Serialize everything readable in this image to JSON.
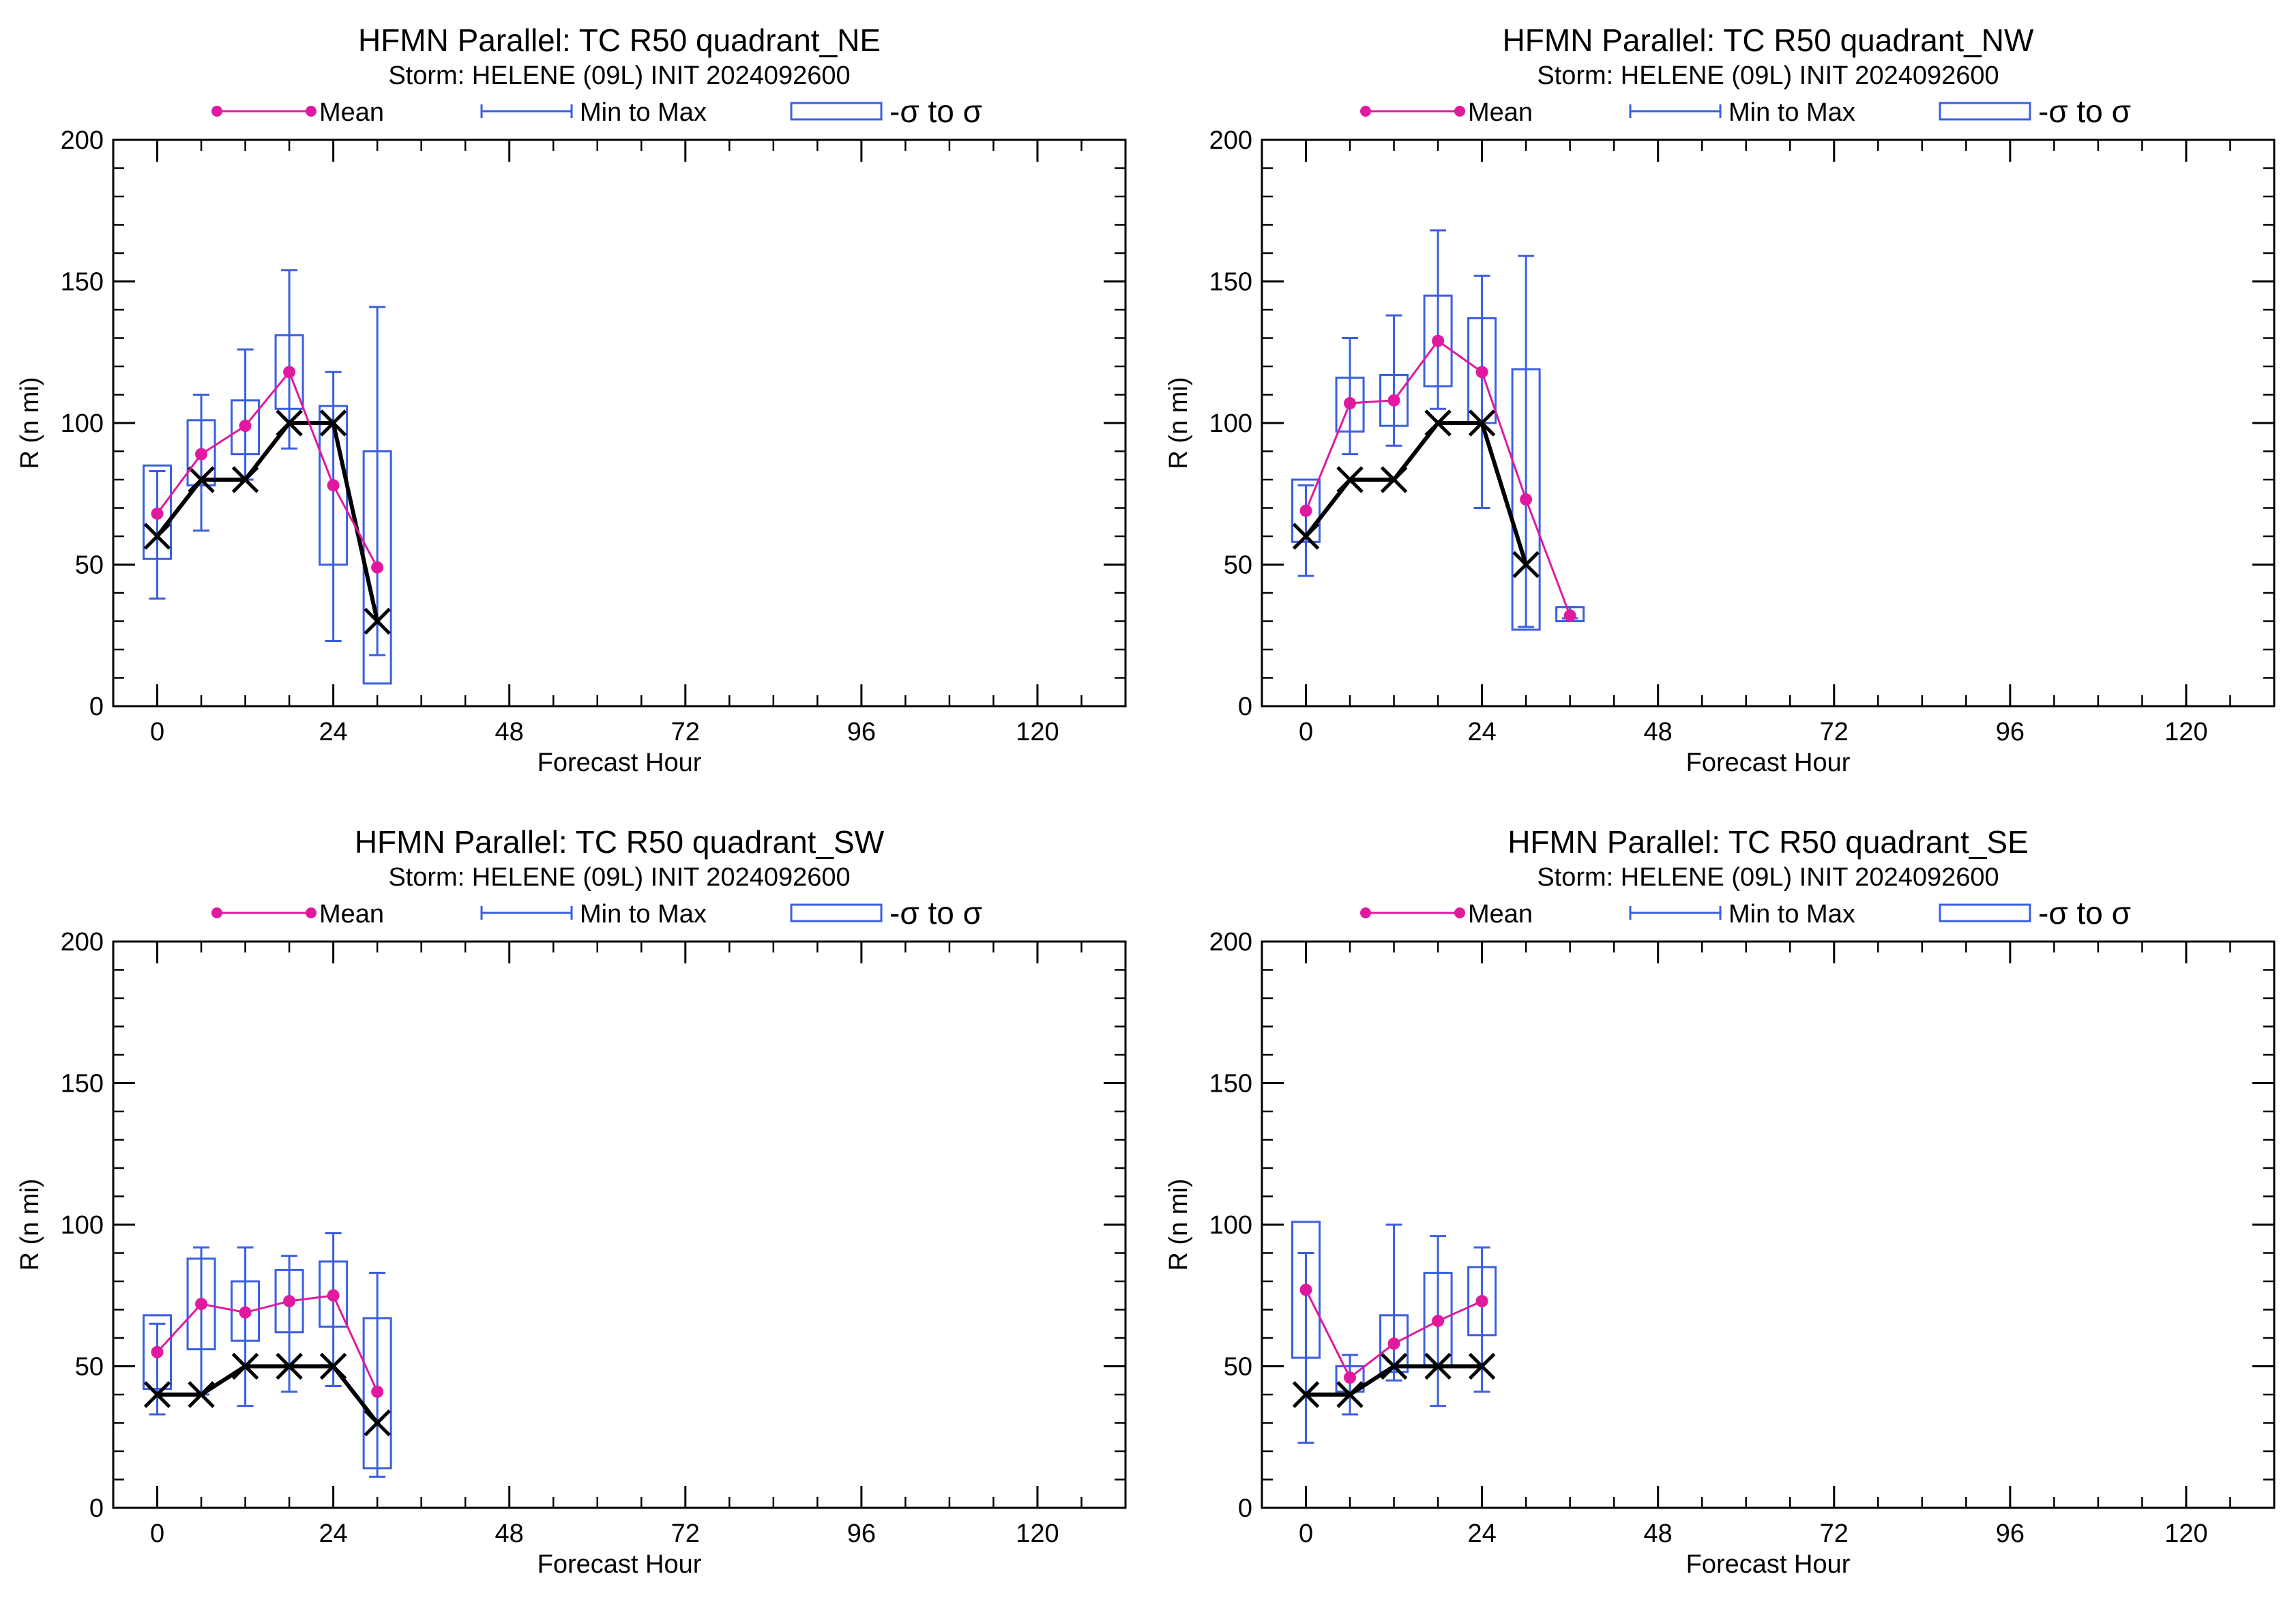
{
  "legend": {
    "mean_label": "Mean",
    "minmax_label": "Min to Max",
    "sigma_label": "-σ to σ"
  },
  "colors": {
    "mean": "#e0199e",
    "box": "#3a5fe0",
    "best_track": "#000000"
  },
  "chart_data": [
    {
      "type": "box",
      "title": "HFMN Parallel: TC  R50 quadrant_NE",
      "subtitle": "Storm: HELENE (09L) INIT 2024092600",
      "xlabel": "Forecast Hour",
      "ylabel": "R (n mi)",
      "xlim": [
        -6,
        132
      ],
      "ylim": [
        0,
        200
      ],
      "xticks": [
        0,
        24,
        48,
        72,
        96,
        120
      ],
      "yticks": [
        0,
        50,
        100,
        150,
        200
      ],
      "x": [
        0,
        6,
        12,
        18,
        24,
        30
      ],
      "mean": [
        68,
        89,
        99,
        118,
        78,
        49
      ],
      "min": [
        38,
        62,
        80,
        91,
        23,
        18
      ],
      "max": [
        83,
        110,
        126,
        154,
        118,
        141
      ],
      "sigma_low": [
        52,
        78,
        89,
        105,
        50,
        8
      ],
      "sigma_high": [
        85,
        101,
        108,
        131,
        106,
        90
      ],
      "best_track": [
        60,
        80,
        80,
        100,
        100,
        30
      ]
    },
    {
      "type": "box",
      "title": "HFMN Parallel: TC  R50 quadrant_NW",
      "subtitle": "Storm: HELENE (09L) INIT 2024092600",
      "xlabel": "Forecast Hour",
      "ylabel": "R (n mi)",
      "xlim": [
        -6,
        132
      ],
      "ylim": [
        0,
        200
      ],
      "xticks": [
        0,
        24,
        48,
        72,
        96,
        120
      ],
      "yticks": [
        0,
        50,
        100,
        150,
        200
      ],
      "x": [
        0,
        6,
        12,
        18,
        24,
        30,
        36
      ],
      "mean": [
        69,
        107,
        108,
        129,
        118,
        73,
        32
      ],
      "min": [
        46,
        89,
        92,
        105,
        70,
        28,
        31
      ],
      "max": [
        78,
        130,
        138,
        168,
        152,
        159,
        35
      ],
      "sigma_low": [
        58,
        97,
        99,
        113,
        100,
        27,
        30
      ],
      "sigma_high": [
        80,
        116,
        117,
        145,
        137,
        119,
        35
      ],
      "best_track": [
        60,
        80,
        80,
        100,
        100,
        50,
        null
      ]
    },
    {
      "type": "box",
      "title": "HFMN Parallel: TC  R50 quadrant_SW",
      "subtitle": "Storm: HELENE (09L) INIT 2024092600",
      "xlabel": "Forecast Hour",
      "ylabel": "R (n mi)",
      "xlim": [
        -6,
        132
      ],
      "ylim": [
        0,
        200
      ],
      "xticks": [
        0,
        24,
        48,
        72,
        96,
        120
      ],
      "yticks": [
        0,
        50,
        100,
        150,
        200
      ],
      "x": [
        0,
        6,
        12,
        18,
        24,
        30
      ],
      "mean": [
        55,
        72,
        69,
        73,
        75,
        41
      ],
      "min": [
        33,
        40,
        36,
        41,
        43,
        11
      ],
      "max": [
        65,
        92,
        92,
        89,
        97,
        83
      ],
      "sigma_low": [
        42,
        56,
        59,
        62,
        64,
        14
      ],
      "sigma_high": [
        68,
        88,
        80,
        84,
        87,
        67
      ],
      "best_track": [
        40,
        40,
        50,
        50,
        50,
        30
      ]
    },
    {
      "type": "box",
      "title": "HFMN Parallel: TC  R50 quadrant_SE",
      "subtitle": "Storm: HELENE (09L) INIT 2024092600",
      "xlabel": "Forecast Hour",
      "ylabel": "R (n mi)",
      "xlim": [
        -6,
        132
      ],
      "ylim": [
        0,
        200
      ],
      "xticks": [
        0,
        24,
        48,
        72,
        96,
        120
      ],
      "yticks": [
        0,
        50,
        100,
        150,
        200
      ],
      "x": [
        0,
        6,
        12,
        18,
        24
      ],
      "mean": [
        77,
        46,
        58,
        66,
        73
      ],
      "min": [
        23,
        33,
        45,
        36,
        41
      ],
      "max": [
        90,
        54,
        100,
        96,
        92
      ],
      "sigma_low": [
        53,
        41,
        48,
        50,
        61
      ],
      "sigma_high": [
        101,
        50,
        68,
        83,
        85
      ],
      "best_track": [
        40,
        40,
        50,
        50,
        50
      ]
    }
  ]
}
